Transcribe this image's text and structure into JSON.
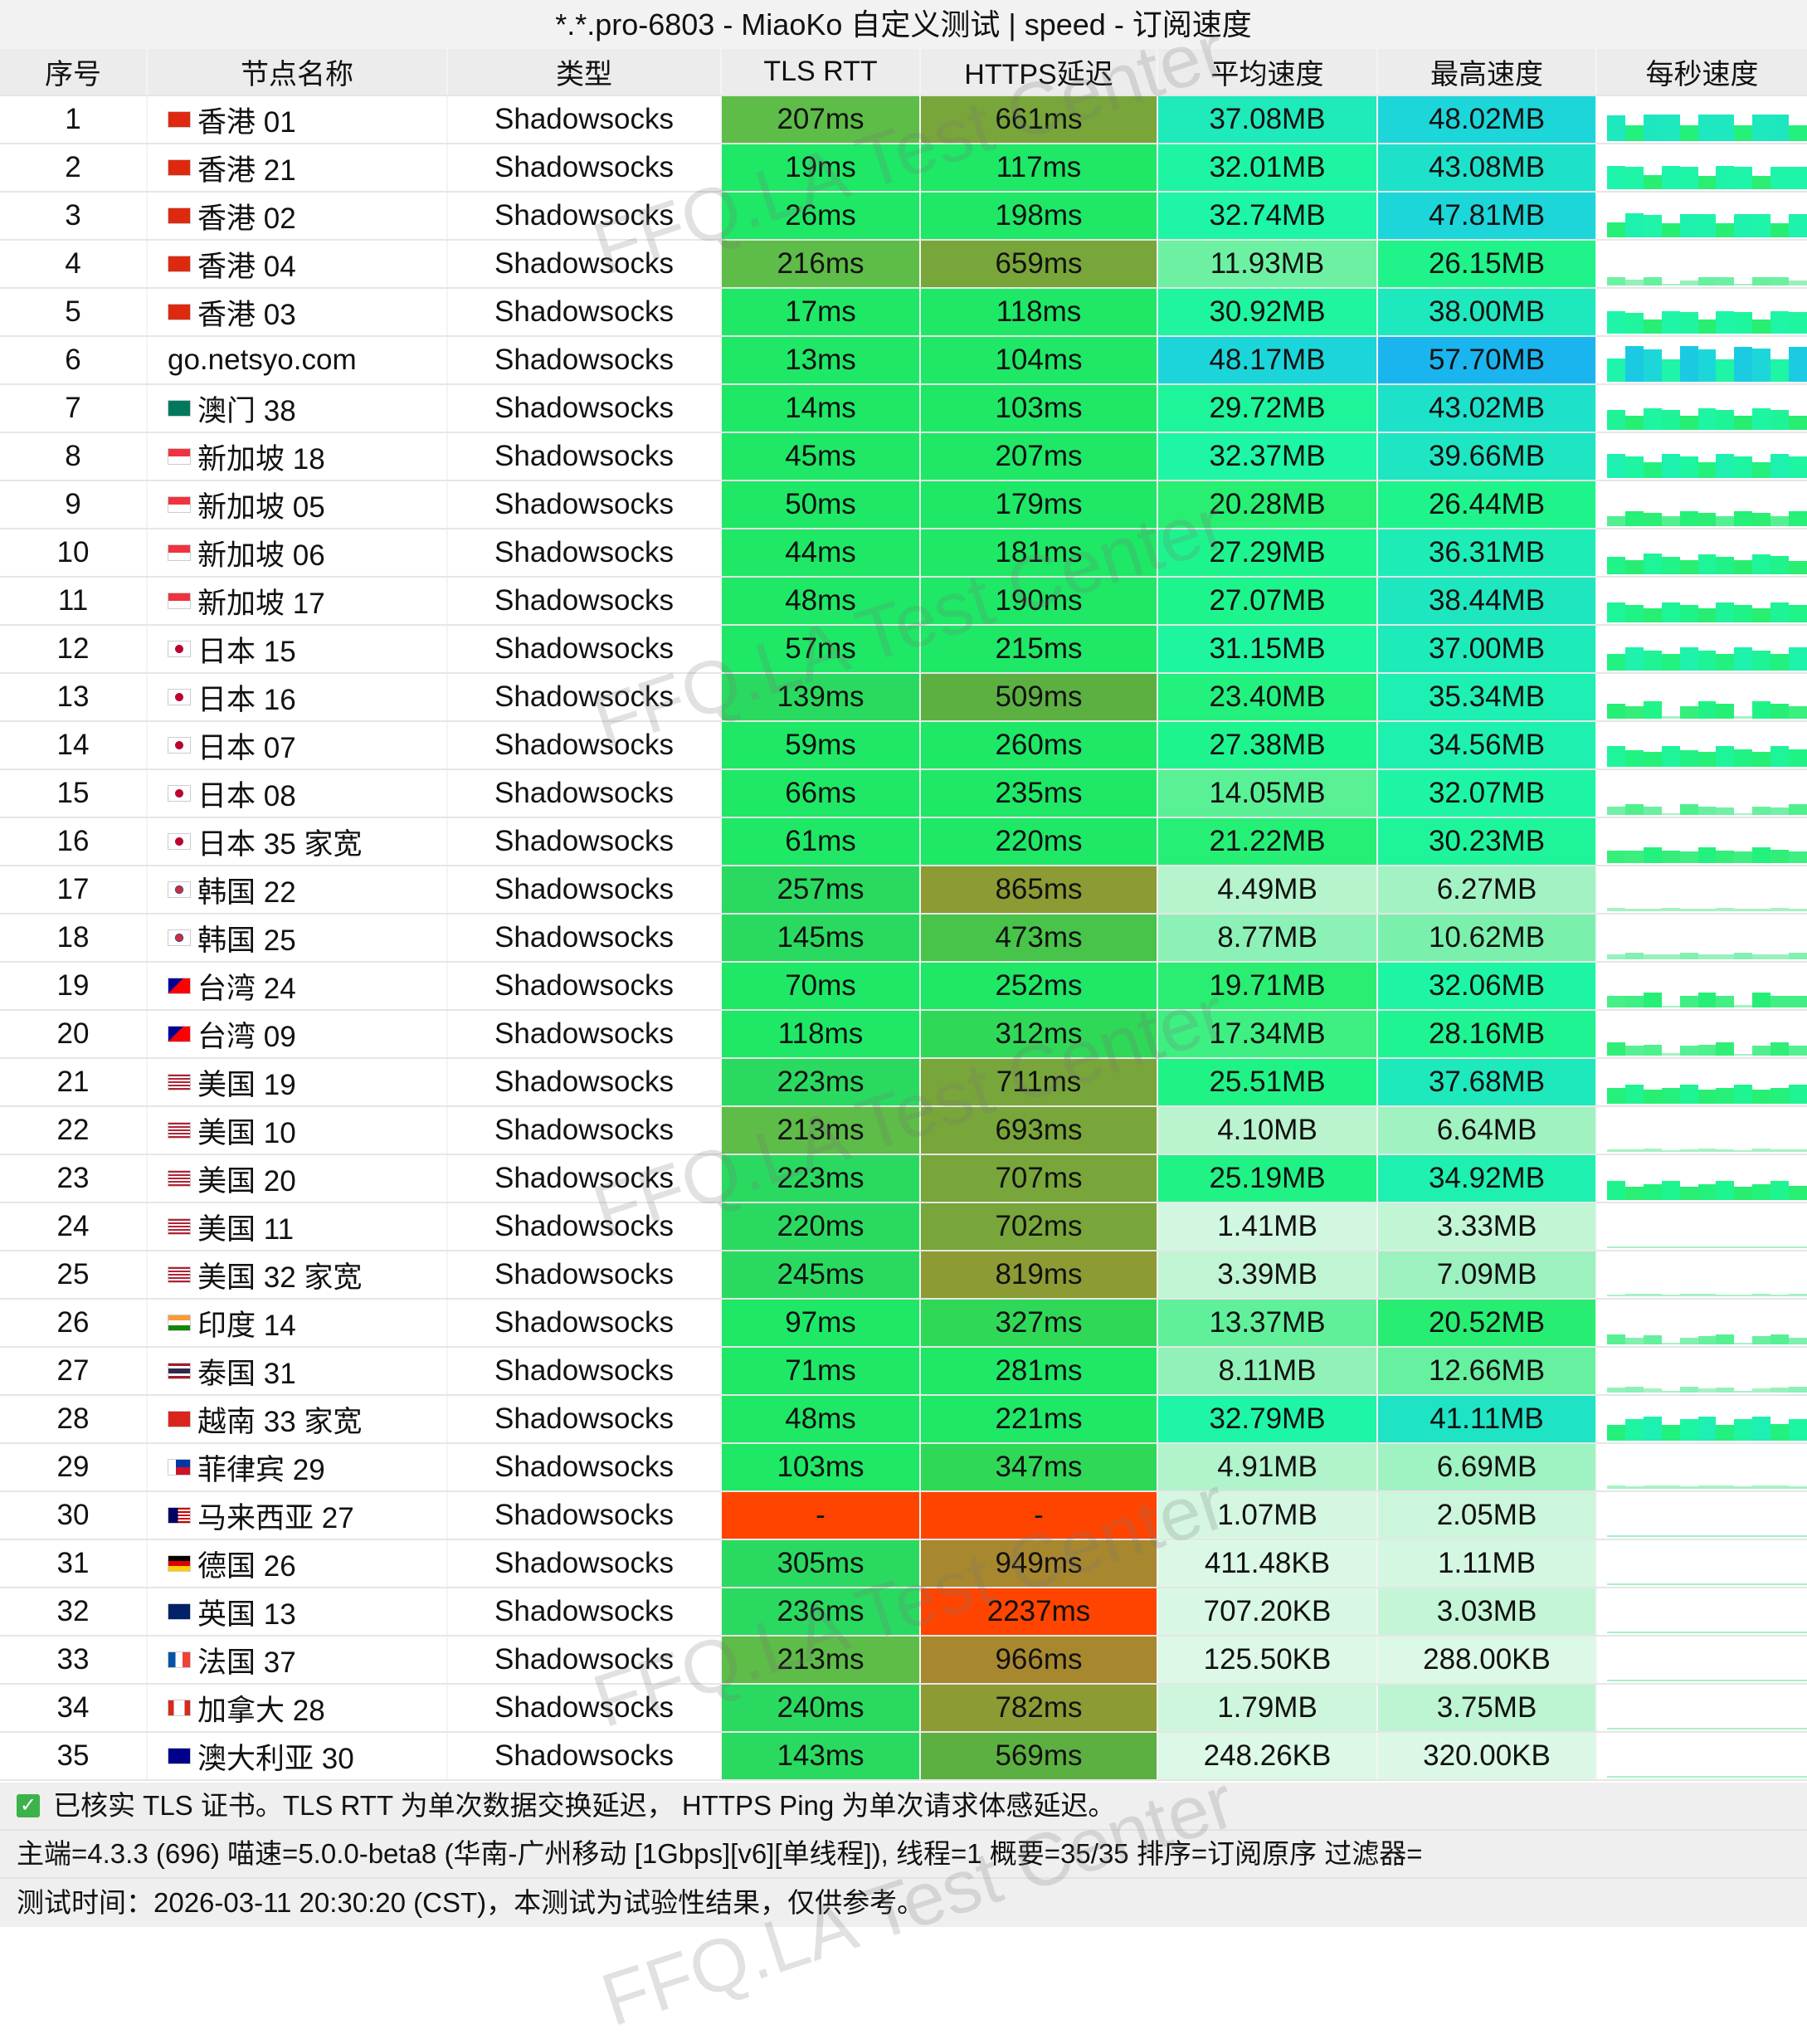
{
  "window_title": "*.*.pro-6803 - MiaoKo 自定义测试 | speed - 订阅速度",
  "columns": [
    "序号",
    "节点名称",
    "类型",
    "TLS RTT",
    "HTTPS延迟",
    "平均速度",
    "最高速度",
    "每秒速度"
  ],
  "watermark": "FFQ.LA Test Center",
  "rows": [
    {
      "id": "1",
      "name": "香港 01",
      "flag": "hk",
      "type": "Shadowsocks",
      "tls": "207ms",
      "https": "661ms",
      "avg": "37.08MB",
      "max": "48.02MB"
    },
    {
      "id": "2",
      "name": "香港 21",
      "flag": "hk",
      "type": "Shadowsocks",
      "tls": "19ms",
      "https": "117ms",
      "avg": "32.01MB",
      "max": "43.08MB"
    },
    {
      "id": "3",
      "name": "香港 02",
      "flag": "hk",
      "type": "Shadowsocks",
      "tls": "26ms",
      "https": "198ms",
      "avg": "32.74MB",
      "max": "47.81MB"
    },
    {
      "id": "4",
      "name": "香港 04",
      "flag": "hk",
      "type": "Shadowsocks",
      "tls": "216ms",
      "https": "659ms",
      "avg": "11.93MB",
      "max": "26.15MB"
    },
    {
      "id": "5",
      "name": "香港 03",
      "flag": "hk",
      "type": "Shadowsocks",
      "tls": "17ms",
      "https": "118ms",
      "avg": "30.92MB",
      "max": "38.00MB"
    },
    {
      "id": "6",
      "name": "go.netsyo.com",
      "flag": "",
      "type": "Shadowsocks",
      "tls": "13ms",
      "https": "104ms",
      "avg": "48.17MB",
      "max": "57.70MB"
    },
    {
      "id": "7",
      "name": "澳门 38",
      "flag": "mo",
      "type": "Shadowsocks",
      "tls": "14ms",
      "https": "103ms",
      "avg": "29.72MB",
      "max": "43.02MB"
    },
    {
      "id": "8",
      "name": "新加坡 18",
      "flag": "sg",
      "type": "Shadowsocks",
      "tls": "45ms",
      "https": "207ms",
      "avg": "32.37MB",
      "max": "39.66MB"
    },
    {
      "id": "9",
      "name": "新加坡 05",
      "flag": "sg",
      "type": "Shadowsocks",
      "tls": "50ms",
      "https": "179ms",
      "avg": "20.28MB",
      "max": "26.44MB"
    },
    {
      "id": "10",
      "name": "新加坡 06",
      "flag": "sg",
      "type": "Shadowsocks",
      "tls": "44ms",
      "https": "181ms",
      "avg": "27.29MB",
      "max": "36.31MB"
    },
    {
      "id": "11",
      "name": "新加坡 17",
      "flag": "sg",
      "type": "Shadowsocks",
      "tls": "48ms",
      "https": "190ms",
      "avg": "27.07MB",
      "max": "38.44MB"
    },
    {
      "id": "12",
      "name": "日本 15",
      "flag": "jp",
      "type": "Shadowsocks",
      "tls": "57ms",
      "https": "215ms",
      "avg": "31.15MB",
      "max": "37.00MB"
    },
    {
      "id": "13",
      "name": "日本 16",
      "flag": "jp",
      "type": "Shadowsocks",
      "tls": "139ms",
      "https": "509ms",
      "avg": "23.40MB",
      "max": "35.34MB"
    },
    {
      "id": "14",
      "name": "日本 07",
      "flag": "jp",
      "type": "Shadowsocks",
      "tls": "59ms",
      "https": "260ms",
      "avg": "27.38MB",
      "max": "34.56MB"
    },
    {
      "id": "15",
      "name": "日本 08",
      "flag": "jp",
      "type": "Shadowsocks",
      "tls": "66ms",
      "https": "235ms",
      "avg": "14.05MB",
      "max": "32.07MB"
    },
    {
      "id": "16",
      "name": "日本 35 家宽",
      "flag": "jp",
      "type": "Shadowsocks",
      "tls": "61ms",
      "https": "220ms",
      "avg": "21.22MB",
      "max": "30.23MB"
    },
    {
      "id": "17",
      "name": "韩国 22",
      "flag": "kr",
      "type": "Shadowsocks",
      "tls": "257ms",
      "https": "865ms",
      "avg": "4.49MB",
      "max": "6.27MB"
    },
    {
      "id": "18",
      "name": "韩国 25",
      "flag": "kr",
      "type": "Shadowsocks",
      "tls": "145ms",
      "https": "473ms",
      "avg": "8.77MB",
      "max": "10.62MB"
    },
    {
      "id": "19",
      "name": "台湾 24",
      "flag": "tw",
      "type": "Shadowsocks",
      "tls": "70ms",
      "https": "252ms",
      "avg": "19.71MB",
      "max": "32.06MB"
    },
    {
      "id": "20",
      "name": "台湾 09",
      "flag": "tw",
      "type": "Shadowsocks",
      "tls": "118ms",
      "https": "312ms",
      "avg": "17.34MB",
      "max": "28.16MB"
    },
    {
      "id": "21",
      "name": "美国 19",
      "flag": "us",
      "type": "Shadowsocks",
      "tls": "223ms",
      "https": "711ms",
      "avg": "25.51MB",
      "max": "37.68MB"
    },
    {
      "id": "22",
      "name": "美国 10",
      "flag": "us",
      "type": "Shadowsocks",
      "tls": "213ms",
      "https": "693ms",
      "avg": "4.10MB",
      "max": "6.64MB"
    },
    {
      "id": "23",
      "name": "美国 20",
      "flag": "us",
      "type": "Shadowsocks",
      "tls": "223ms",
      "https": "707ms",
      "avg": "25.19MB",
      "max": "34.92MB"
    },
    {
      "id": "24",
      "name": "美国 11",
      "flag": "us",
      "type": "Shadowsocks",
      "tls": "220ms",
      "https": "702ms",
      "avg": "1.41MB",
      "max": "3.33MB"
    },
    {
      "id": "25",
      "name": "美国 32 家宽",
      "flag": "us",
      "type": "Shadowsocks",
      "tls": "245ms",
      "https": "819ms",
      "avg": "3.39MB",
      "max": "7.09MB"
    },
    {
      "id": "26",
      "name": "印度 14",
      "flag": "in",
      "type": "Shadowsocks",
      "tls": "97ms",
      "https": "327ms",
      "avg": "13.37MB",
      "max": "20.52MB"
    },
    {
      "id": "27",
      "name": "泰国 31",
      "flag": "th",
      "type": "Shadowsocks",
      "tls": "71ms",
      "https": "281ms",
      "avg": "8.11MB",
      "max": "12.66MB"
    },
    {
      "id": "28",
      "name": "越南 33 家宽",
      "flag": "vn",
      "type": "Shadowsocks",
      "tls": "48ms",
      "https": "221ms",
      "avg": "32.79MB",
      "max": "41.11MB"
    },
    {
      "id": "29",
      "name": "菲律宾 29",
      "flag": "ph",
      "type": "Shadowsocks",
      "tls": "103ms",
      "https": "347ms",
      "avg": "4.91MB",
      "max": "6.69MB"
    },
    {
      "id": "30",
      "name": "马来西亚 27",
      "flag": "my",
      "type": "Shadowsocks",
      "tls": "-",
      "https": "-",
      "avg": "1.07MB",
      "max": "2.05MB"
    },
    {
      "id": "31",
      "name": "德国 26",
      "flag": "de",
      "type": "Shadowsocks",
      "tls": "305ms",
      "https": "949ms",
      "avg": "411.48KB",
      "max": "1.11MB"
    },
    {
      "id": "32",
      "name": "英国 13",
      "flag": "gb",
      "type": "Shadowsocks",
      "tls": "236ms",
      "https": "2237ms",
      "avg": "707.20KB",
      "max": "3.03MB"
    },
    {
      "id": "33",
      "name": "法国 37",
      "flag": "fr",
      "type": "Shadowsocks",
      "tls": "213ms",
      "https": "966ms",
      "avg": "125.50KB",
      "max": "288.00KB"
    },
    {
      "id": "34",
      "name": "加拿大 28",
      "flag": "ca",
      "type": "Shadowsocks",
      "tls": "240ms",
      "https": "782ms",
      "avg": "1.79MB",
      "max": "3.75MB"
    },
    {
      "id": "35",
      "name": "澳大利亚 30",
      "flag": "au",
      "type": "Shadowsocks",
      "tls": "143ms",
      "https": "569ms",
      "avg": "248.26KB",
      "max": "320.00KB"
    }
  ],
  "footer": {
    "line1": "已核实 TLS 证书。TLS RTT 为单次数据交换延迟， HTTPS Ping 为单次请求体感延迟。",
    "line2": "主端=4.3.3 (696) 喵速=5.0.0-beta8 (华南-广州移动 [1Gbps][v6][单线程]), 线程=1 概要=35/35 排序=订阅原序 过滤器=",
    "line3": "测试时间：2026-03-11 20:30:20 (CST)，本测试为试验性结果，仅供参考。",
    "check_icon": "checkbox-checked-icon"
  },
  "colors": {
    "fail": "#ff4400",
    "header_bg": "#ececec",
    "footer_bg": "#efefef",
    "check": "#3cb34a"
  }
}
